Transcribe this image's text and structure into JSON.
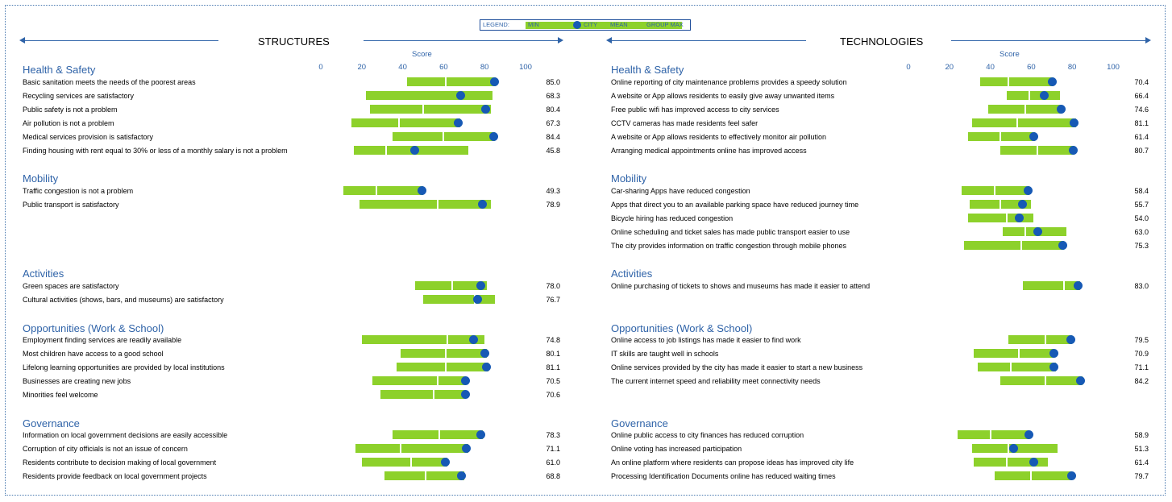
{
  "legend": {
    "title": "LEGEND:",
    "min": "MIN",
    "city": "CITY",
    "mean": "MEAN",
    "group_max": "GROUP MAX"
  },
  "colors": {
    "bar": "#8dd12b",
    "dot": "#1659b5",
    "accent": "#2f63a8"
  },
  "chart_data": [
    {
      "type": "bar",
      "title": "STRUCTURES",
      "xlabel": "Score",
      "ticks": [
        "0",
        "20",
        "40",
        "60",
        "80",
        "100"
      ],
      "xlim": [
        0,
        100
      ],
      "groups": [
        {
          "name": "Health & Safety",
          "items": [
            {
              "label": "Basic sanitation meets the needs of the poorest areas",
              "min": 42,
              "mean": 61,
              "max": 85.5,
              "city": 85.0,
              "value": "85.0"
            },
            {
              "label": "Recycling services are satisfactory",
              "min": 22,
              "mean": 68,
              "max": 84,
              "city": 68.3,
              "value": "68.3"
            },
            {
              "label": "Public safety is not a problem",
              "min": 24,
              "mean": 50,
              "max": 83,
              "city": 80.4,
              "value": "80.4"
            },
            {
              "label": "Air pollution is not a problem",
              "min": 15,
              "mean": 38,
              "max": 68,
              "city": 67.3,
              "value": "67.3"
            },
            {
              "label": "Medical services provision is satisfactory",
              "min": 35,
              "mean": 60,
              "max": 85,
              "city": 84.4,
              "value": "84.4"
            },
            {
              "label": "Finding housing with rent equal to 30% or less of a monthly salary is not a problem",
              "min": 16,
              "mean": 32,
              "max": 72,
              "city": 45.8,
              "value": "45.8"
            }
          ]
        },
        {
          "name": "Mobility",
          "items": [
            {
              "label": "Traffic congestion is not a problem",
              "min": 11,
              "mean": 27,
              "max": 50,
              "city": 49.3,
              "value": "49.3"
            },
            {
              "label": "Public transport is satisfactory",
              "min": 19,
              "mean": 57,
              "max": 83,
              "city": 78.9,
              "value": "78.9"
            }
          ]
        },
        {
          "name": "Activities",
          "items": [
            {
              "label": "Green spaces are satisfactory",
              "min": 46,
              "mean": 64,
              "max": 81,
              "city": 78.0,
              "value": "78.0"
            },
            {
              "label": "Cultural activities (shows, bars, and museums) are satisfactory",
              "min": 50,
              "mean": 75,
              "max": 85,
              "city": 76.7,
              "value": "76.7"
            }
          ]
        },
        {
          "name": "Opportunities (Work & School)",
          "items": [
            {
              "label": "Employment finding services are readily available",
              "min": 20,
              "mean": 62,
              "max": 80,
              "city": 74.8,
              "value": "74.8"
            },
            {
              "label": "Most children have access to a good school",
              "min": 39,
              "mean": 61,
              "max": 81,
              "city": 80.1,
              "value": "80.1"
            },
            {
              "label": "Lifelong learning opportunities are provided by local institutions",
              "min": 37,
              "mean": 61,
              "max": 82,
              "city": 81.1,
              "value": "81.1"
            },
            {
              "label": "Businesses are creating new jobs",
              "min": 25,
              "mean": 57,
              "max": 71,
              "city": 70.5,
              "value": "70.5"
            },
            {
              "label": "Minorities feel welcome",
              "min": 29,
              "mean": 55,
              "max": 71,
              "city": 70.6,
              "value": "70.6"
            }
          ]
        },
        {
          "name": "Governance",
          "items": [
            {
              "label": "Information on local government decisions are easily accessible",
              "min": 35,
              "mean": 58,
              "max": 79,
              "city": 78.3,
              "value": "78.3"
            },
            {
              "label": "Corruption of city officials is not an issue of concern",
              "min": 17,
              "mean": 39,
              "max": 72,
              "city": 71.1,
              "value": "71.1"
            },
            {
              "label": "Residents contribute to decision making of local government",
              "min": 20,
              "mean": 44,
              "max": 62,
              "city": 61.0,
              "value": "61.0"
            },
            {
              "label": "Residents provide feedback on local government projects",
              "min": 31,
              "mean": 51,
              "max": 70,
              "city": 68.8,
              "value": "68.8"
            }
          ]
        }
      ]
    },
    {
      "type": "bar",
      "title": "TECHNOLOGIES",
      "xlabel": "Score",
      "ticks": [
        "0",
        "20",
        "40",
        "60",
        "80",
        "100"
      ],
      "xlim": [
        0,
        100
      ],
      "groups": [
        {
          "name": "Health & Safety",
          "items": [
            {
              "label": "Online reporting of city maintenance problems provides a speedy solution",
              "min": 35,
              "mean": 49,
              "max": 71,
              "city": 70.4,
              "value": "70.4"
            },
            {
              "label": "A website or App allows residents to easily give away unwanted items",
              "min": 48,
              "mean": 59,
              "max": 74,
              "city": 66.4,
              "value": "66.4"
            },
            {
              "label": "Free public wifi has improved access to city services",
              "min": 39,
              "mean": 57,
              "max": 75,
              "city": 74.6,
              "value": "74.6"
            },
            {
              "label": "CCTV cameras has made residents feel safer",
              "min": 31,
              "mean": 53,
              "max": 82,
              "city": 81.1,
              "value": "81.1"
            },
            {
              "label": "A website or App allows residents to effectively monitor air pollution",
              "min": 29,
              "mean": 45,
              "max": 62,
              "city": 61.4,
              "value": "61.4"
            },
            {
              "label": "Arranging medical appointments online has improved access",
              "min": 45,
              "mean": 63,
              "max": 81,
              "city": 80.7,
              "value": "80.7"
            }
          ]
        },
        {
          "name": "Mobility",
          "items": [
            {
              "label": "Car-sharing Apps have reduced congestion",
              "min": 26,
              "mean": 42,
              "max": 59,
              "city": 58.4,
              "value": "58.4"
            },
            {
              "label": "Apps that direct you to an available parking space have reduced journey time",
              "min": 30,
              "mean": 45,
              "max": 60,
              "city": 55.7,
              "value": "55.7"
            },
            {
              "label": "Bicycle hiring has reduced congestion",
              "min": 29,
              "mean": 48,
              "max": 61,
              "city": 54.0,
              "value": "54.0"
            },
            {
              "label": "Online scheduling and ticket sales has made public transport easier to use",
              "min": 46,
              "mean": 57,
              "max": 77,
              "city": 63.0,
              "value": "63.0"
            },
            {
              "label": "The city provides information on traffic congestion through mobile phones",
              "min": 27,
              "mean": 55,
              "max": 76,
              "city": 75.3,
              "value": "75.3"
            }
          ]
        },
        {
          "name": "Activities",
          "items": [
            {
              "label": "Online purchasing of tickets to shows and museums has made it easier to attend",
              "min": 56,
              "mean": 76,
              "max": 84,
              "city": 83.0,
              "value": "83.0"
            }
          ]
        },
        {
          "name": "Opportunities (Work & School)",
          "items": [
            {
              "label": "Online access to job listings has made it easier to find work",
              "min": 49,
              "mean": 67,
              "max": 80,
              "city": 79.5,
              "value": "79.5"
            },
            {
              "label": "IT skills are taught well in schools",
              "min": 32,
              "mean": 54,
              "max": 71,
              "city": 70.9,
              "value": "70.9"
            },
            {
              "label": "Online services provided by the city has made it easier to start a new business",
              "min": 34,
              "mean": 50,
              "max": 72,
              "city": 71.1,
              "value": "71.1"
            },
            {
              "label": "The current internet speed and reliability meet connectivity needs",
              "min": 45,
              "mean": 67,
              "max": 85,
              "city": 84.2,
              "value": "84.2"
            }
          ]
        },
        {
          "name": "Governance",
          "items": [
            {
              "label": "Online public access to city finances has reduced corruption",
              "min": 24,
              "mean": 40,
              "max": 59,
              "city": 58.9,
              "value": "58.9"
            },
            {
              "label": "Online voting has increased participation",
              "min": 31,
              "mean": 49,
              "max": 73,
              "city": 51.3,
              "value": "51.3"
            },
            {
              "label": "An online platform where residents can propose ideas has improved city life",
              "min": 32,
              "mean": 48,
              "max": 68,
              "city": 61.4,
              "value": "61.4"
            },
            {
              "label": "Processing Identification Documents online has reduced waiting times",
              "min": 42,
              "mean": 60,
              "max": 80,
              "city": 79.7,
              "value": "79.7"
            }
          ]
        }
      ]
    }
  ]
}
